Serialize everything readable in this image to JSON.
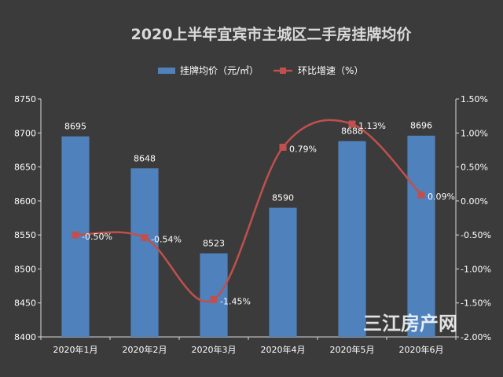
{
  "chart_data": {
    "type": "bar+line",
    "title": "2020上半年宜宾市主城区二手房挂牌均价",
    "categories": [
      "2020年1月",
      "2020年2月",
      "2020年3月",
      "2020年4月",
      "2020年5月",
      "2020年6月"
    ],
    "series": [
      {
        "name": "挂牌均价（元/㎡）",
        "type": "bar",
        "axis": "left",
        "values": [
          8695,
          8648,
          8523,
          8590,
          8688,
          8696
        ],
        "labels": [
          "8695",
          "8648",
          "8523",
          "8590",
          "8688",
          "8696"
        ],
        "color": "#4f81bd"
      },
      {
        "name": "环比增速（%）",
        "type": "line",
        "axis": "right",
        "values": [
          -0.5,
          -0.54,
          -1.45,
          0.79,
          1.13,
          0.09
        ],
        "labels": [
          "-0.50%",
          "-0.54%",
          "-1.45%",
          "0.79%",
          "1.13%",
          "0.09%"
        ],
        "color": "#c0504d",
        "smooth": true
      }
    ],
    "y_left": {
      "range": [
        8400,
        8750
      ],
      "ticks": [
        "8400",
        "8450",
        "8500",
        "8550",
        "8600",
        "8650",
        "8700",
        "8750"
      ]
    },
    "y_right": {
      "range": [
        -2.0,
        1.5
      ],
      "ticks": [
        "-2.00%",
        "-1.50%",
        "-1.00%",
        "-0.50%",
        "0.00%",
        "0.50%",
        "1.00%",
        "1.50%"
      ]
    },
    "legend_position": "top-center",
    "grid": false
  },
  "watermark": {
    "text": "三江房产网"
  },
  "colors": {
    "background": "#3b3b3b",
    "bar": "#4f81bd",
    "line": "#c0504d",
    "text": "#ffffff",
    "title": "#d9d9d9"
  }
}
